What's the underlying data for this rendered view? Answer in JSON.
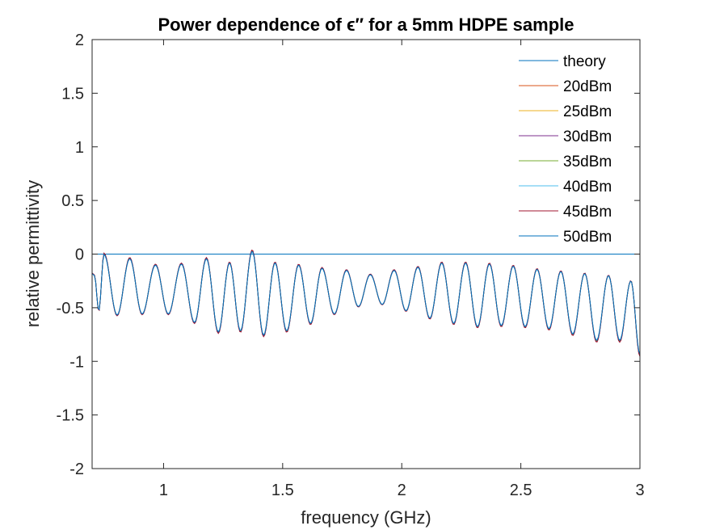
{
  "chart_data": {
    "type": "line",
    "title": "Power dependence of ϵ′′ for a 5mm HDPE sample",
    "xlabel": "frequency (GHz)",
    "ylabel": "relative permittivity",
    "xlim": [
      0.7,
      3.0
    ],
    "ylim": [
      -2,
      2
    ],
    "xticks": [
      1,
      1.5,
      2,
      2.5,
      3
    ],
    "xtick_labels": [
      "1",
      "1.5",
      "2",
      "2.5",
      "3"
    ],
    "yticks": [
      -2,
      -1.5,
      -1,
      -0.5,
      0,
      0.5,
      1,
      1.5,
      2
    ],
    "ytick_labels": [
      "-2",
      "-1.5",
      "-1",
      "-0.5",
      "0",
      "0.5",
      "1",
      "1.5",
      "2"
    ],
    "grid": false,
    "legend_position": "top-right",
    "series": [
      {
        "name": "theory",
        "color": "#0072BD",
        "x": [
          0.7,
          3.0
        ],
        "y": [
          0,
          0
        ]
      },
      {
        "name": "20dBm",
        "color": "#D95319",
        "offset": 0.0
      },
      {
        "name": "25dBm",
        "color": "#EDB120",
        "offset": 0.01
      },
      {
        "name": "30dBm",
        "color": "#7E2F8E",
        "offset": 0.02
      },
      {
        "name": "35dBm",
        "color": "#77AC30",
        "offset": 0.0
      },
      {
        "name": "40dBm",
        "color": "#4DBEEE",
        "offset": -0.02
      },
      {
        "name": "45dBm",
        "color": "#A2142F",
        "offset": 0.025
      },
      {
        "name": "50dBm",
        "color": "#0072BD",
        "offset": -0.01
      }
    ],
    "measured_curve": {
      "description_x_units": "GHz",
      "peaks": [
        {
          "x": 0.71,
          "y": -0.2
        },
        {
          "x": 0.75,
          "y": 0.0
        },
        {
          "x": 0.858,
          "y": -0.04
        },
        {
          "x": 0.966,
          "y": -0.1
        },
        {
          "x": 1.075,
          "y": -0.09
        },
        {
          "x": 1.18,
          "y": -0.04
        },
        {
          "x": 1.277,
          "y": -0.08
        },
        {
          "x": 1.372,
          "y": 0.03
        },
        {
          "x": 1.468,
          "y": -0.08
        },
        {
          "x": 1.567,
          "y": -0.1
        },
        {
          "x": 1.665,
          "y": -0.13
        },
        {
          "x": 1.768,
          "y": -0.15
        },
        {
          "x": 1.868,
          "y": -0.19
        },
        {
          "x": 1.968,
          "y": -0.15
        },
        {
          "x": 2.068,
          "y": -0.12
        },
        {
          "x": 2.168,
          "y": -0.08
        },
        {
          "x": 2.268,
          "y": -0.08
        },
        {
          "x": 2.368,
          "y": -0.09
        },
        {
          "x": 2.468,
          "y": -0.11
        },
        {
          "x": 2.568,
          "y": -0.14
        },
        {
          "x": 2.668,
          "y": -0.16
        },
        {
          "x": 2.768,
          "y": -0.18
        },
        {
          "x": 2.868,
          "y": -0.2
        },
        {
          "x": 2.962,
          "y": -0.25
        }
      ],
      "troughs": [
        {
          "x": 0.728,
          "y": -0.53
        },
        {
          "x": 0.805,
          "y": -0.57
        },
        {
          "x": 0.91,
          "y": -0.56
        },
        {
          "x": 1.02,
          "y": -0.56
        },
        {
          "x": 1.13,
          "y": -0.64
        },
        {
          "x": 1.23,
          "y": -0.73
        },
        {
          "x": 1.323,
          "y": -0.72
        },
        {
          "x": 1.42,
          "y": -0.76
        },
        {
          "x": 1.517,
          "y": -0.72
        },
        {
          "x": 1.617,
          "y": -0.65
        },
        {
          "x": 1.717,
          "y": -0.56
        },
        {
          "x": 1.818,
          "y": -0.49
        },
        {
          "x": 1.918,
          "y": -0.47
        },
        {
          "x": 2.018,
          "y": -0.53
        },
        {
          "x": 2.118,
          "y": -0.6
        },
        {
          "x": 2.218,
          "y": -0.65
        },
        {
          "x": 2.318,
          "y": -0.68
        },
        {
          "x": 2.418,
          "y": -0.67
        },
        {
          "x": 2.518,
          "y": -0.68
        },
        {
          "x": 2.618,
          "y": -0.7
        },
        {
          "x": 2.718,
          "y": -0.75
        },
        {
          "x": 2.818,
          "y": -0.81
        },
        {
          "x": 2.915,
          "y": -0.81
        },
        {
          "x": 3.0,
          "y": -0.94
        }
      ]
    }
  }
}
